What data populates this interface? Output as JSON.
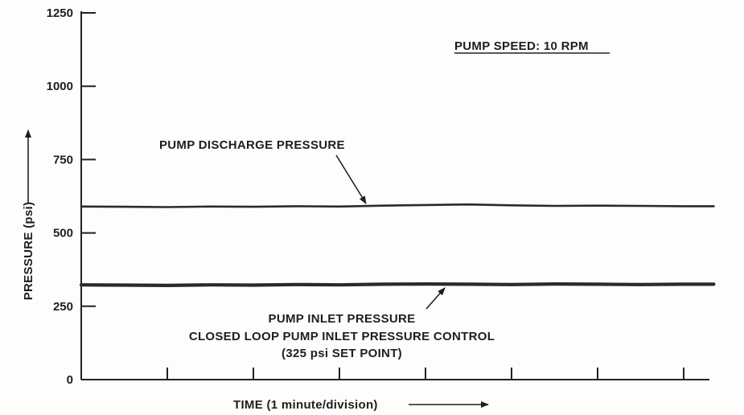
{
  "chart_data": {
    "type": "line",
    "title": "",
    "xlabel": "TIME (1 minute/division)",
    "ylabel": "PRESSURE (psi)",
    "ylim": [
      0,
      1250
    ],
    "xlim": [
      0,
      7.35
    ],
    "yticks": [
      0,
      250,
      500,
      750,
      1000,
      1250
    ],
    "ytick_labels": [
      "0",
      "250",
      "500",
      "750",
      "1000",
      "1250"
    ],
    "xtick_divisions": [
      1,
      2,
      3,
      4,
      5,
      6,
      7
    ],
    "grid": false,
    "series": [
      {
        "name": "PUMP DISCHARGE PRESSURE",
        "x": [
          0,
          0.5,
          1,
          1.5,
          2,
          2.5,
          3,
          3.5,
          4,
          4.5,
          5,
          5.5,
          6,
          6.5,
          7,
          7.35
        ],
        "y": [
          590,
          589,
          588,
          590,
          589,
          591,
          590,
          593,
          595,
          597,
          594,
          592,
          593,
          592,
          591,
          591
        ]
      },
      {
        "name": "PUMP INLET PRESSURE",
        "x": [
          0,
          0.5,
          1,
          1.5,
          2,
          2.5,
          3,
          3.5,
          4,
          4.5,
          5,
          5.5,
          6,
          6.5,
          7,
          7.35
        ],
        "y": [
          323,
          322,
          321,
          323,
          322,
          324,
          323,
          325,
          326,
          325,
          324,
          326,
          325,
          324,
          325,
          325
        ]
      }
    ],
    "annotations": [
      {
        "text": "PUMP SPEED: 10 RPM"
      },
      {
        "text": "PUMP DISCHARGE PRESSURE"
      },
      {
        "text": "PUMP INLET PRESSURE"
      },
      {
        "text": "CLOSED LOOP PUMP INLET PRESSURE CONTROL"
      },
      {
        "text": "(325 psi SET POINT)"
      }
    ]
  }
}
